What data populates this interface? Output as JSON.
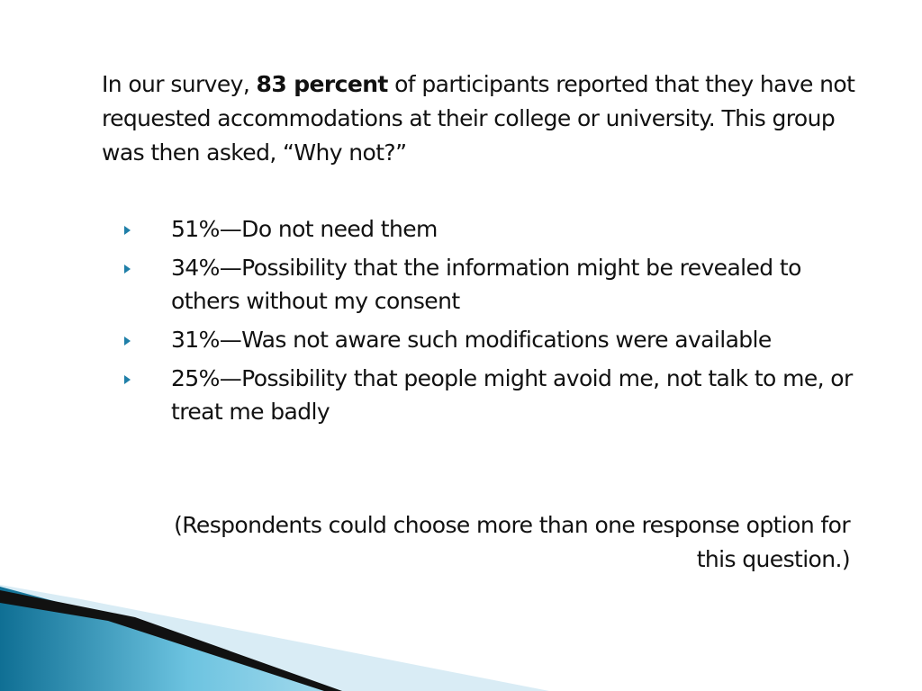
{
  "intro": {
    "prefix": "In our survey, ",
    "emphasis": "83 percent",
    "suffix": " of participants reported that they have not requested accommodations at their college or university. This group was then asked, “Why not?”"
  },
  "bullets": [
    {
      "text": "51%—Do not need them"
    },
    {
      "text": "34%—Possibility that the information might be revealed to others without my consent"
    },
    {
      "text": "31%—Was not aware such modifications were available"
    },
    {
      "text": "25%—Possibility that people might avoid me, not talk to me, or treat me badly"
    }
  ],
  "note": "(Respondents could choose more than one response option for this question.)",
  "colors": {
    "bullet": "#1f7fa8",
    "swoosh_dark": "#0f6f94",
    "swoosh_light": "#6cc3e0",
    "swoosh_pale": "#d9ecf5",
    "swoosh_black": "#111111"
  }
}
